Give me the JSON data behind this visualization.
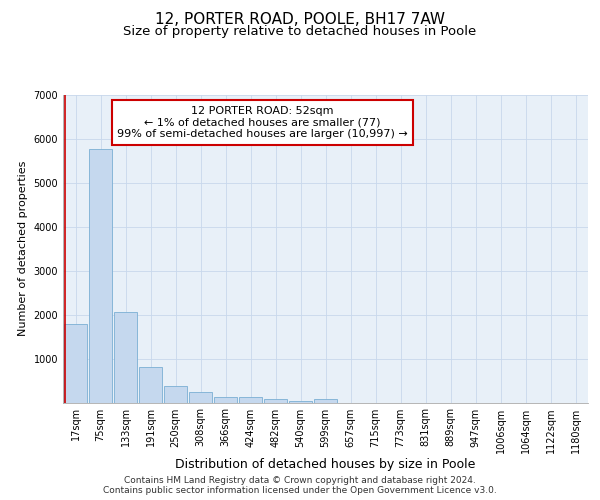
{
  "title": "12, PORTER ROAD, POOLE, BH17 7AW",
  "subtitle": "Size of property relative to detached houses in Poole",
  "xlabel": "Distribution of detached houses by size in Poole",
  "ylabel": "Number of detached properties",
  "categories": [
    "17sqm",
    "75sqm",
    "133sqm",
    "191sqm",
    "250sqm",
    "308sqm",
    "366sqm",
    "424sqm",
    "482sqm",
    "540sqm",
    "599sqm",
    "657sqm",
    "715sqm",
    "773sqm",
    "831sqm",
    "889sqm",
    "947sqm",
    "1006sqm",
    "1064sqm",
    "1122sqm",
    "1180sqm"
  ],
  "values": [
    1790,
    5780,
    2060,
    810,
    380,
    230,
    115,
    115,
    70,
    45,
    70,
    0,
    0,
    0,
    0,
    0,
    0,
    0,
    0,
    0,
    0
  ],
  "bar_color": "#c5d8ee",
  "bar_edge_color": "#7bafd4",
  "vline_color": "#cc0000",
  "vline_x_index": 0,
  "annotation_text": "12 PORTER ROAD: 52sqm\n← 1% of detached houses are smaller (77)\n99% of semi-detached houses are larger (10,997) →",
  "annotation_box_facecolor": "#ffffff",
  "annotation_box_edgecolor": "#cc0000",
  "ylim": [
    0,
    7000
  ],
  "yticks": [
    0,
    1000,
    2000,
    3000,
    4000,
    5000,
    6000,
    7000
  ],
  "grid_color": "#c8d8ec",
  "background_color": "#e8f0f8",
  "footer_text": "Contains HM Land Registry data © Crown copyright and database right 2024.\nContains public sector information licensed under the Open Government Licence v3.0.",
  "title_fontsize": 11,
  "subtitle_fontsize": 9.5,
  "xlabel_fontsize": 9,
  "ylabel_fontsize": 8,
  "tick_fontsize": 7,
  "annotation_fontsize": 8,
  "footer_fontsize": 6.5
}
